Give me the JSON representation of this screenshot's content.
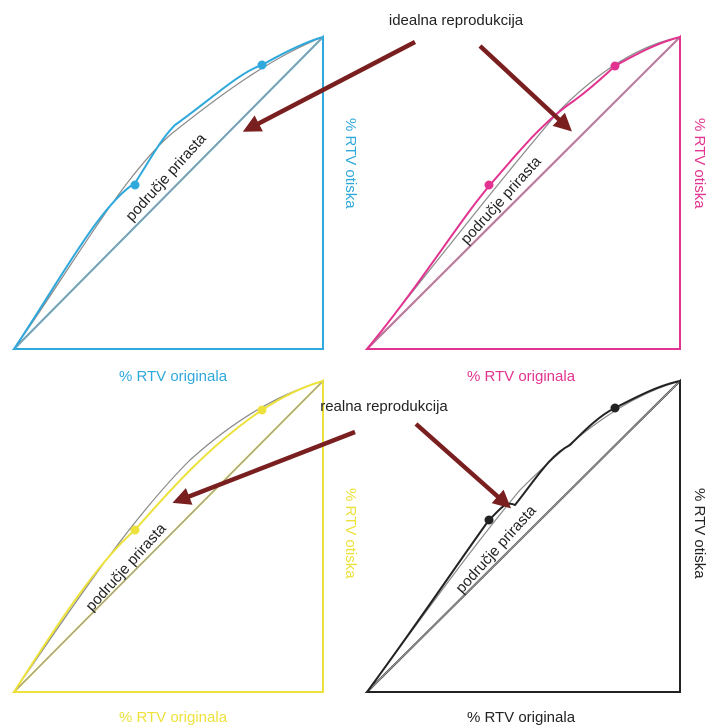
{
  "annotations": {
    "ideal": "idealna reprodukcija",
    "real": "realna reprodukcija"
  },
  "colors": {
    "arrow": "#7a1f1f",
    "diagonal": "#9a9a9a",
    "ideal_curve": "#8a8a8a"
  },
  "panels": [
    {
      "id": "cyan",
      "color": "#2fa8dc",
      "x_label": "% RTV originala",
      "y_label": "% RTV otiska",
      "region_label": "područje prirasta"
    },
    {
      "id": "magenta",
      "color": "#e1338f",
      "x_label": "% RTV originala",
      "y_label": "% RTV otiska",
      "region_label": "područje prirasta"
    },
    {
      "id": "yellow",
      "color": "#ede13b",
      "x_label": "% RTV originala",
      "y_label": "% RTV otiska",
      "region_label": "područje prirasta"
    },
    {
      "id": "black",
      "color": "#222222",
      "x_label": "% RTV originala",
      "y_label": "% RTV otiska",
      "region_label": "područje prirasta"
    }
  ]
}
